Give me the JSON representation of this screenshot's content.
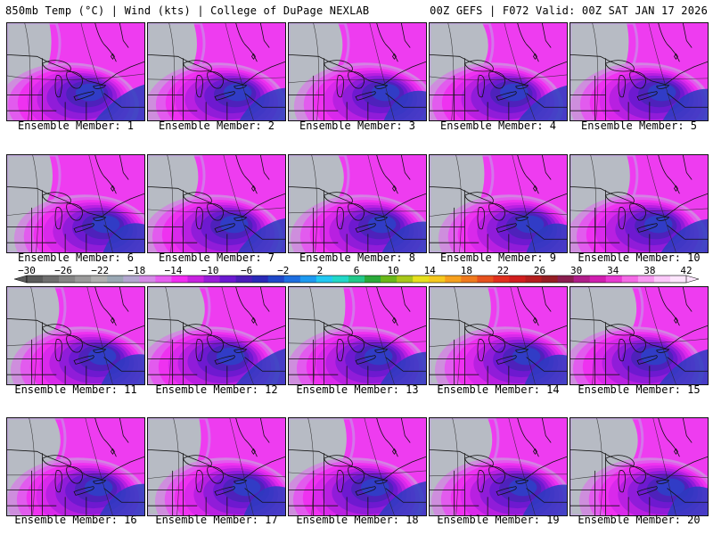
{
  "header": {
    "left": "850mb Temp (°C) | Wind (kts) | College of DuPage NEXLAB",
    "right": "00Z GEFS | F072 Valid: 00Z SAT JAN 17 2026"
  },
  "members": [
    {
      "label": "Ensemble Member: 1"
    },
    {
      "label": "Ensemble Member: 2"
    },
    {
      "label": "Ensemble Member: 3"
    },
    {
      "label": "Ensemble Member: 4"
    },
    {
      "label": "Ensemble Member: 5"
    },
    {
      "label": "Ensemble Member: 6"
    },
    {
      "label": "Ensemble Member: 7"
    },
    {
      "label": "Ensemble Member: 8"
    },
    {
      "label": "Ensemble Member: 9"
    },
    {
      "label": "Ensemble Member: 10"
    },
    {
      "label": "Ensemble Member: 11"
    },
    {
      "label": "Ensemble Member: 12"
    },
    {
      "label": "Ensemble Member: 13"
    },
    {
      "label": "Ensemble Member: 14"
    },
    {
      "label": "Ensemble Member: 15"
    },
    {
      "label": "Ensemble Member: 16"
    },
    {
      "label": "Ensemble Member: 17"
    },
    {
      "label": "Ensemble Member: 18"
    },
    {
      "label": "Ensemble Member: 19"
    },
    {
      "label": "Ensemble Member: 20"
    }
  ],
  "colorbar": {
    "tick_labels": [
      "−30",
      "−26",
      "−22",
      "−18",
      "−14",
      "−10",
      "−6",
      "−2",
      "2",
      "6",
      "10",
      "14",
      "18",
      "22",
      "26",
      "30",
      "34",
      "38",
      "42"
    ],
    "colors": [
      "#5a5a5a",
      "#6f6f6f",
      "#858585",
      "#9a9a9a",
      "#b0b0b0",
      "#9aa8b4",
      "#b3a7d0",
      "#d48ae6",
      "#e65ef0",
      "#f22cf2",
      "#c822e0",
      "#9a1ed8",
      "#6a1ad0",
      "#4a1eb8",
      "#2a2ab8",
      "#1f48c8",
      "#1e6ee0",
      "#1e9af0",
      "#22c8f2",
      "#22d8c8",
      "#22c88a",
      "#2aaa3a",
      "#6ab81a",
      "#a8c81a",
      "#e6e01e",
      "#f6c81e",
      "#f6a01e",
      "#f07a1e",
      "#e6521e",
      "#e0301e",
      "#d01e1e",
      "#b41e1e",
      "#961e24",
      "#8a1e50",
      "#b01e8a",
      "#d01eb0",
      "#e83ad2",
      "#f46ae6",
      "#f89af2",
      "#fcc8fa",
      "#fde6fd"
    ]
  }
}
